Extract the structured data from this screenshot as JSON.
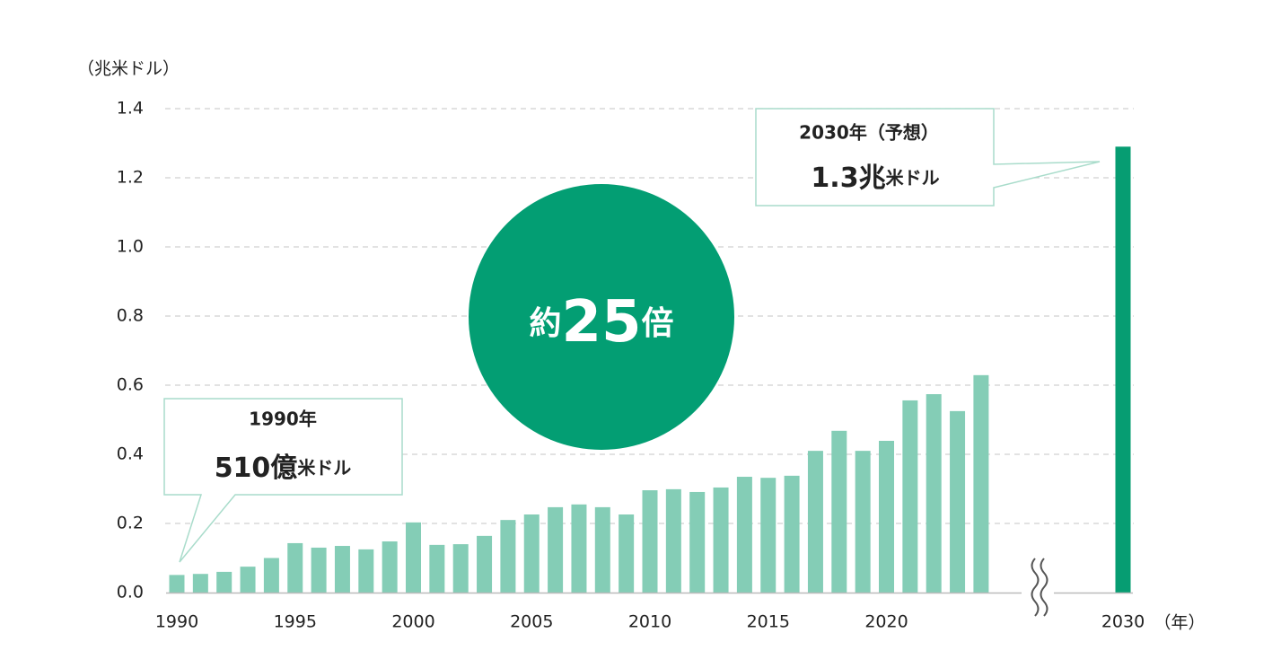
{
  "chart_data": {
    "type": "bar",
    "y_unit": "（兆米ドル）",
    "x_unit": "（年）",
    "categories": [
      "1990",
      null,
      null,
      null,
      null,
      "1995",
      null,
      null,
      null,
      null,
      "2000",
      null,
      null,
      null,
      null,
      "2005",
      null,
      null,
      null,
      null,
      "2010",
      null,
      null,
      null,
      null,
      "2015",
      null,
      null,
      null,
      null,
      "2020",
      null,
      null,
      null,
      null,
      null,
      null,
      null,
      null,
      null,
      "2030"
    ],
    "values": [
      0.051,
      0.054,
      0.06,
      0.075,
      0.1,
      0.143,
      0.13,
      0.135,
      0.125,
      0.148,
      0.203,
      0.138,
      0.14,
      0.164,
      0.21,
      0.226,
      0.247,
      0.255,
      0.247,
      0.226,
      0.296,
      0.299,
      0.291,
      0.304,
      0.335,
      0.332,
      0.338,
      0.41,
      0.468,
      0.41,
      0.439,
      0.556,
      0.574,
      0.525,
      0.629,
      null,
      null,
      null,
      null,
      null,
      1.29
    ],
    "color": "#84cdb6",
    "highlight_color": "#069d72",
    "highlight_index": 40,
    "ylim": [
      0,
      1.4
    ],
    "yticks": [
      {
        "value": 0,
        "label": "0.0"
      },
      0.2,
      0.4,
      0.6,
      0.8,
      {
        "value": 1,
        "label": "1.0"
      },
      1.2,
      1.4
    ],
    "grid": true,
    "callouts": [
      {
        "title": "1990年",
        "value": "510億",
        "unit": "米ドル"
      },
      {
        "title": "2030年（予想）",
        "value": "1.3兆",
        "unit": "米ドル"
      }
    ],
    "badge": {
      "prefix": "約",
      "number": "25",
      "suffix": "倍"
    }
  }
}
